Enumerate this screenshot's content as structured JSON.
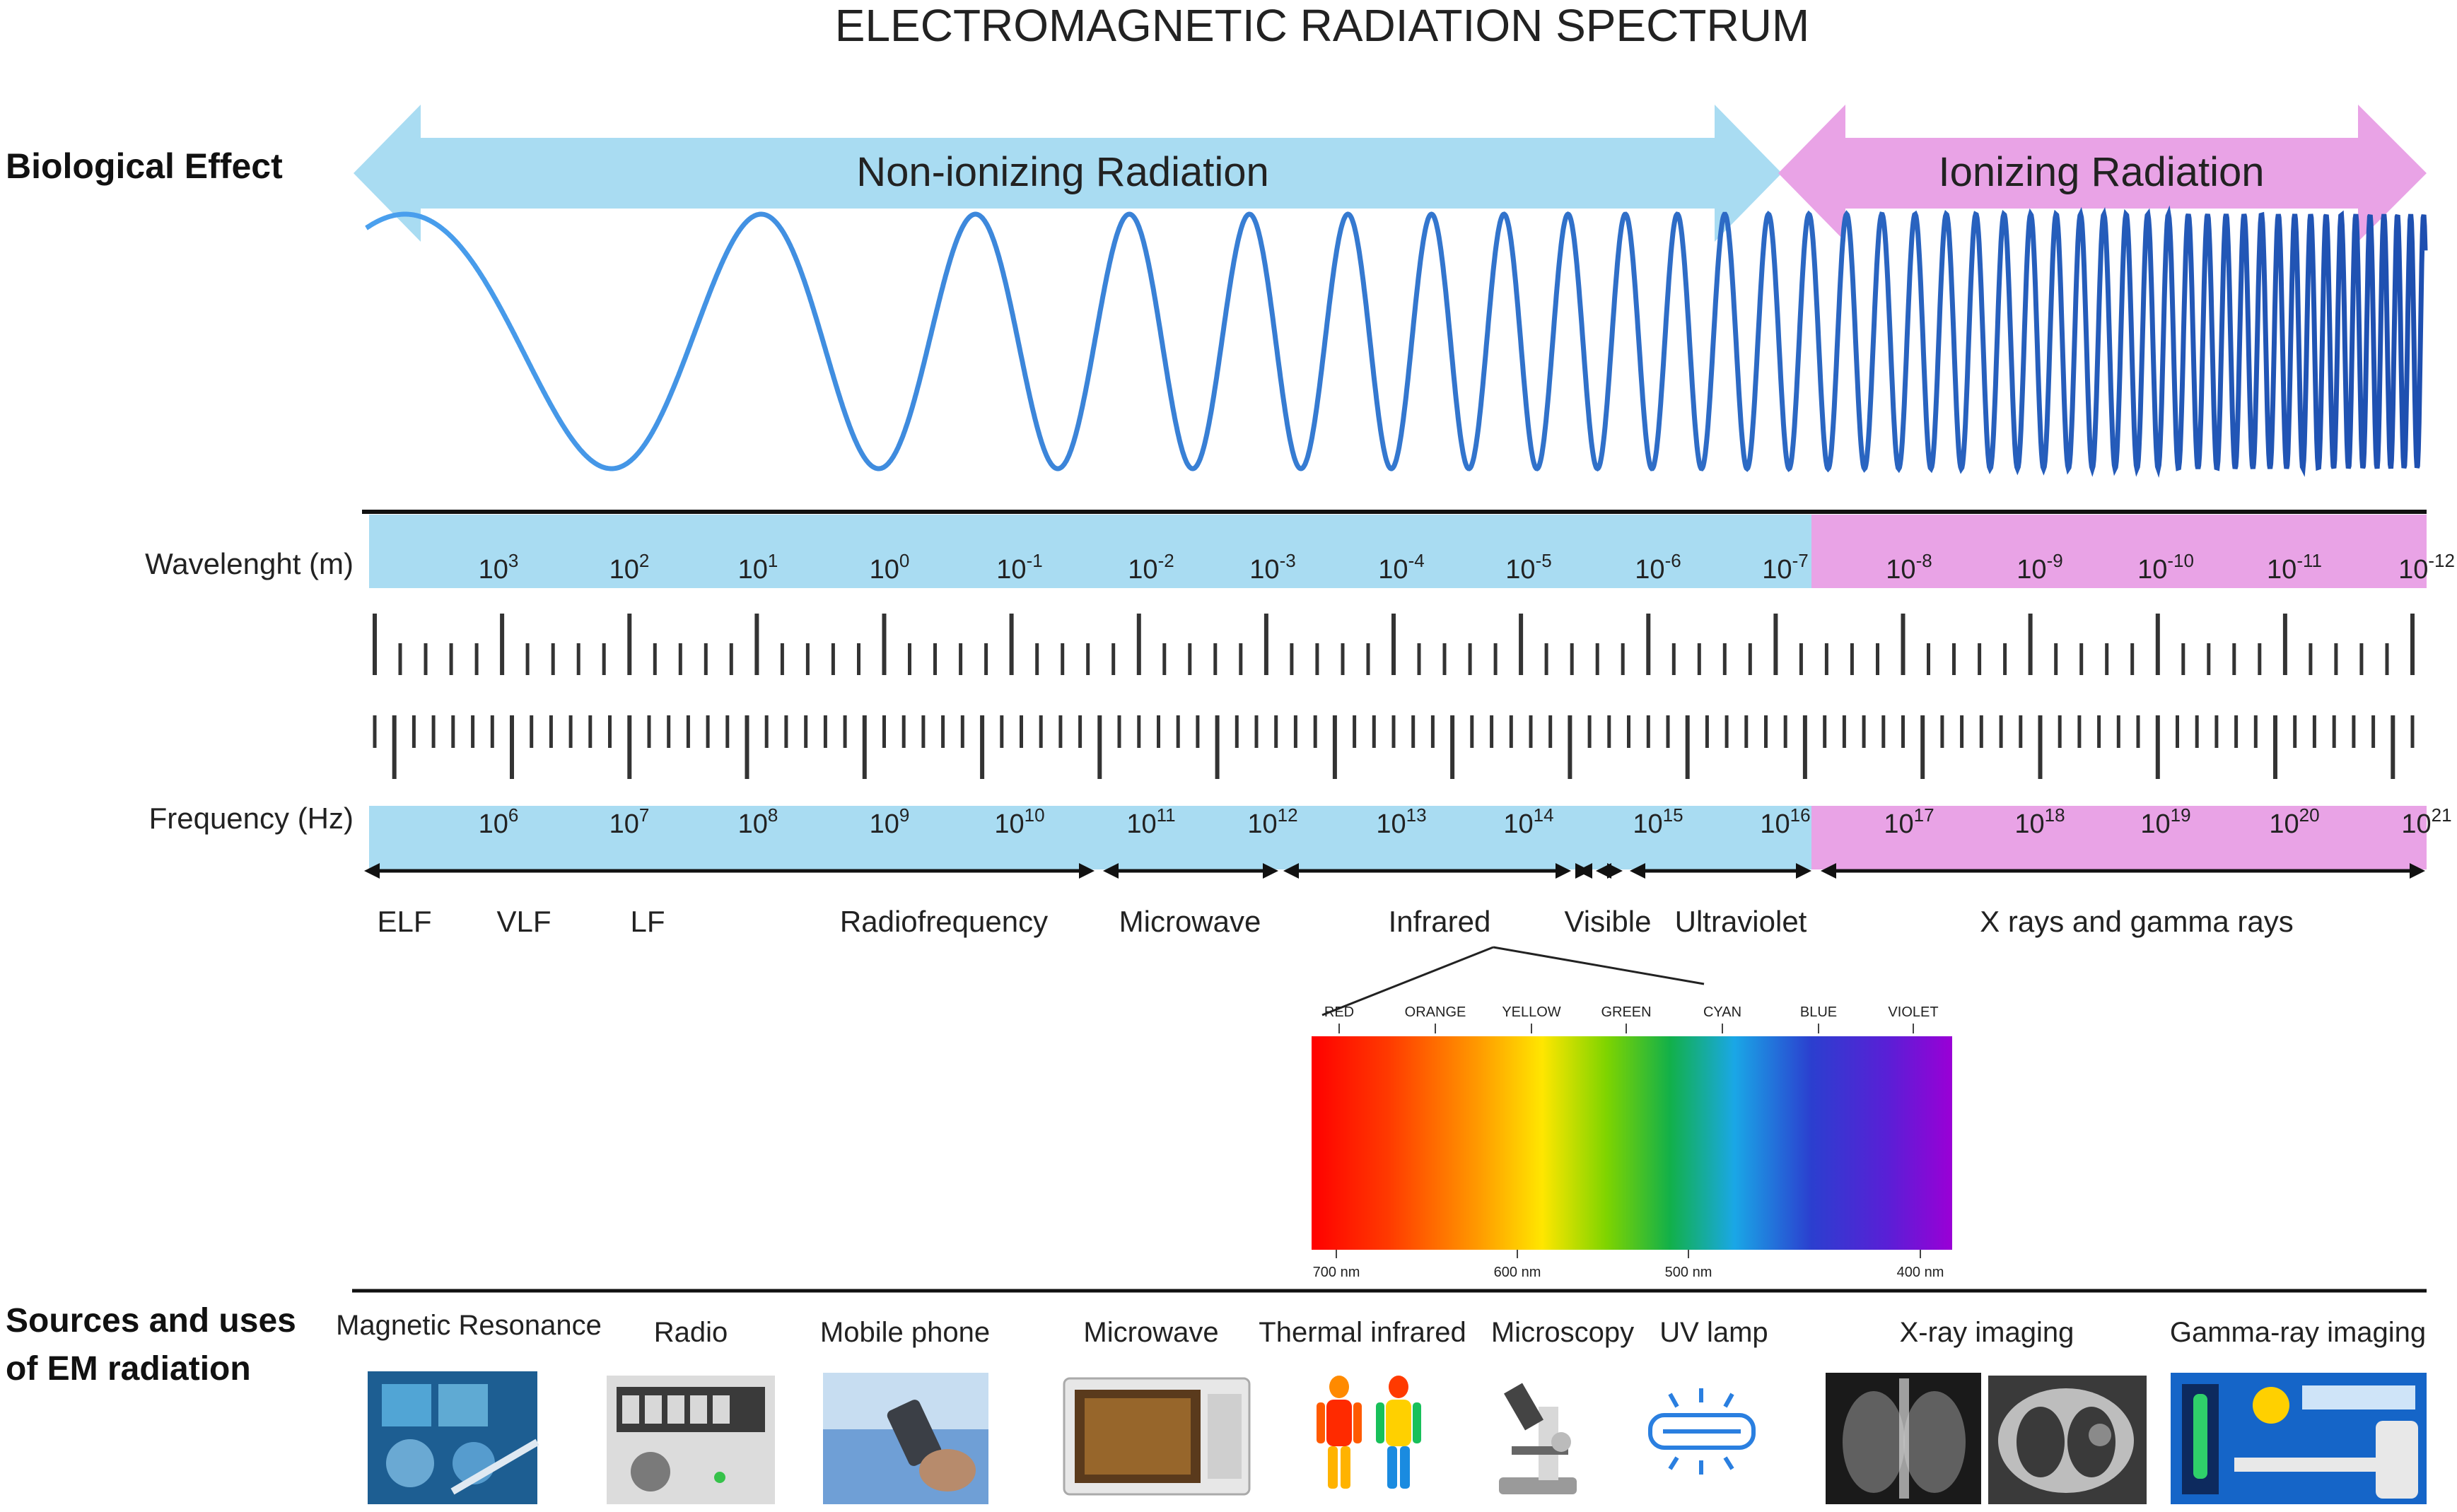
{
  "title": "ELECTROMAGNETIC RADIATION SPECTRUM",
  "biological_effect_label": "Biological Effect",
  "non_ionizing_label": "Non-ionizing Radiation",
  "ionizing_label": "Ionizing Radiation",
  "wavelength_label": "Wavelenght (m)",
  "frequency_label": "Frequency (Hz)",
  "wavelength_exponents": [
    "3",
    "2",
    "1",
    "0",
    "-1",
    "-2",
    "-3",
    "-4",
    "-5",
    "-6",
    "-7",
    "-8",
    "-9",
    "-10",
    "-11",
    "-12"
  ],
  "frequency_exponents": [
    "6",
    "7",
    "8",
    "9",
    "10",
    "11",
    "12",
    "13",
    "14",
    "15",
    "16",
    "17",
    "18",
    "19",
    "20",
    "21"
  ],
  "power_base": "10",
  "bands": [
    "ELF",
    "VLF",
    "LF",
    "Radiofrequency",
    "Microwave",
    "Infrared",
    "Visible",
    "Ultraviolet",
    "X rays and gamma rays"
  ],
  "visible_colors": [
    "RED",
    "ORANGE",
    "YELLOW",
    "GREEN",
    "CYAN",
    "BLUE",
    "VIOLET"
  ],
  "visible_nm": [
    "700 nm",
    "600 nm",
    "500 nm",
    "400 nm"
  ],
  "sources_label_line1": "Sources and uses",
  "sources_label_line2": "of EM radiation",
  "sources": [
    "Magnetic Resonance",
    "Radio",
    "Mobile phone",
    "Microwave",
    "Thermal infrared",
    "Microscopy",
    "UV lamp",
    "X-ray imaging",
    "Gamma-ray imaging"
  ],
  "colors": {
    "non_ionizing": "#a9dcf2",
    "ionizing": "#e9a3e6",
    "wave": "#3f8fe0",
    "band_blue": "#a9dcf2",
    "band_pink": "#e9a3e6"
  }
}
